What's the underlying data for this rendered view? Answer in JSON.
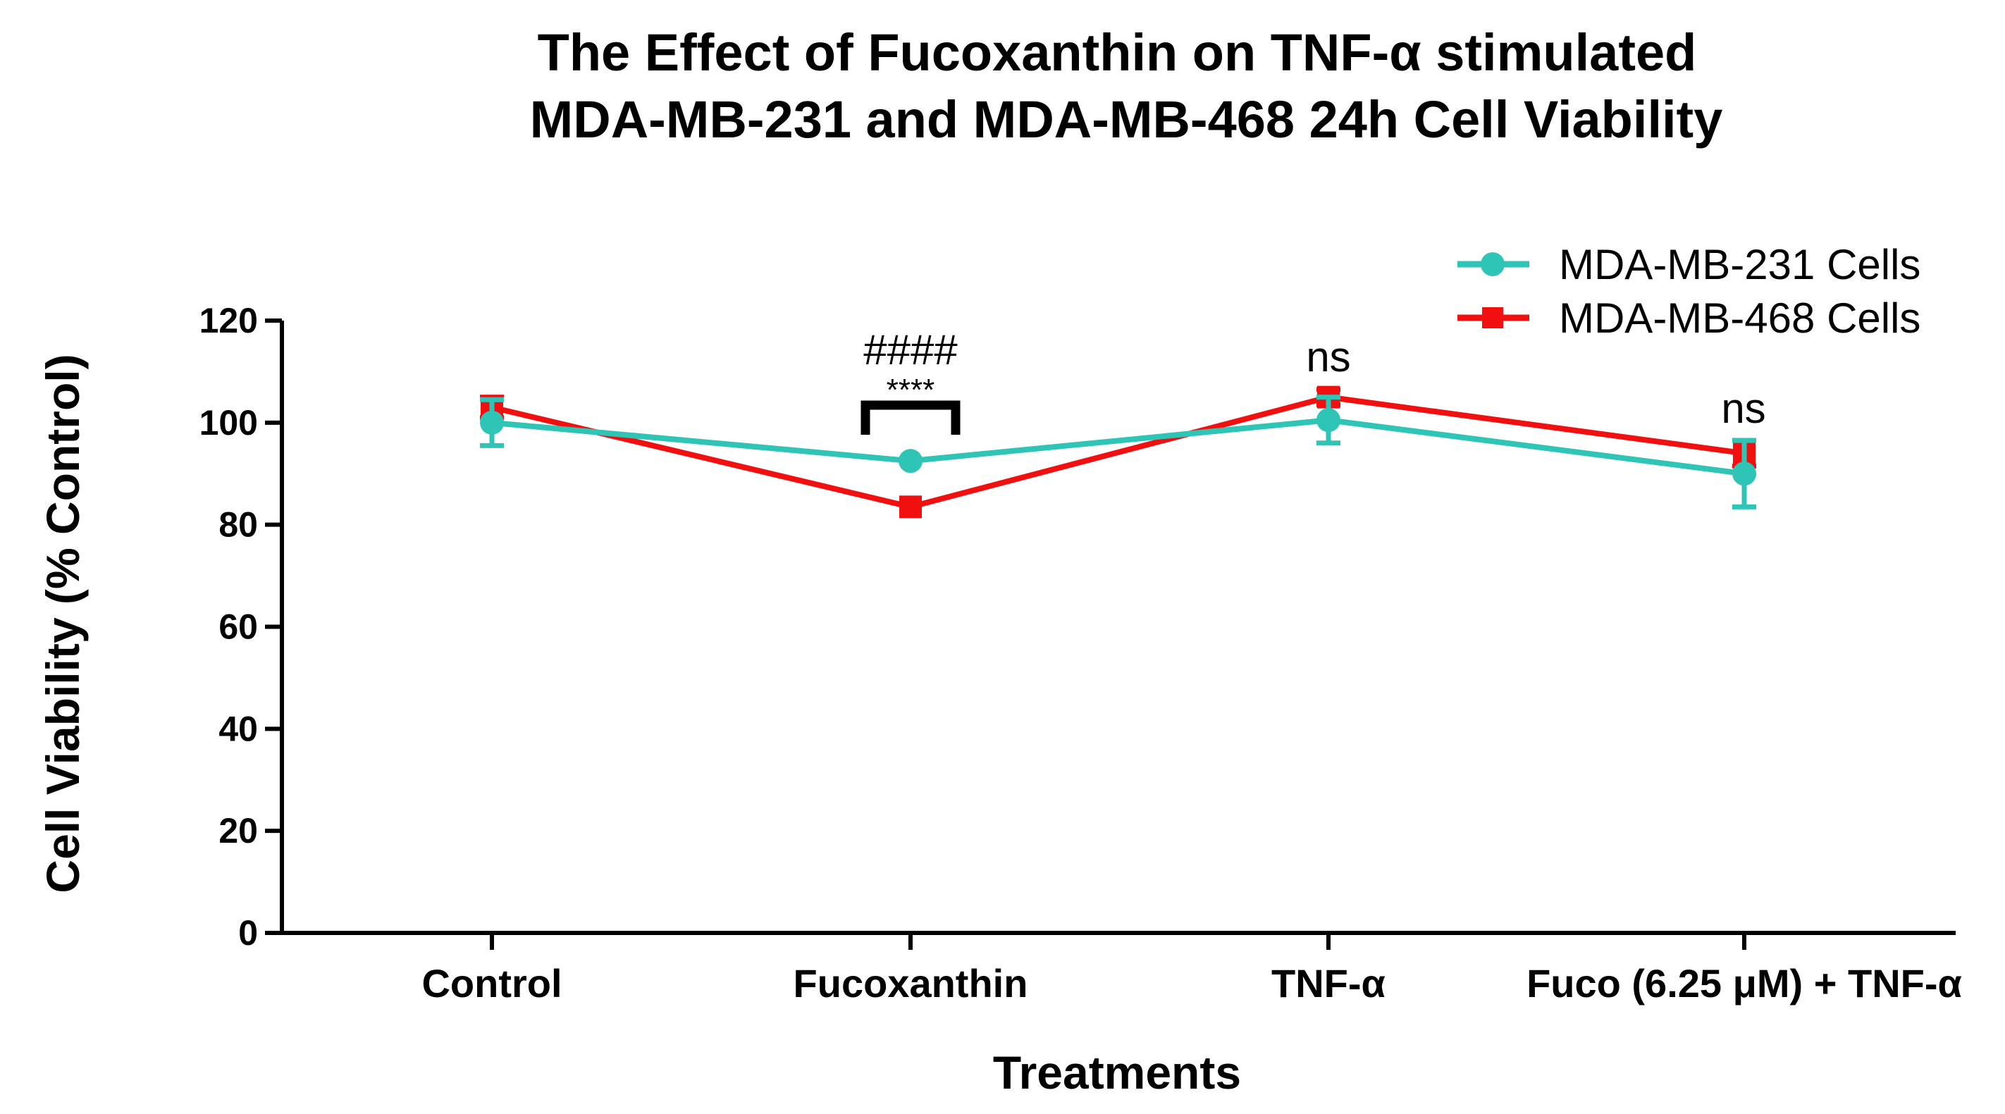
{
  "chart_data": {
    "type": "line",
    "title_lines": [
      "The Effect of Fucoxanthin on TNF-α stimulated",
      "MDA-MB-231 and MDA-MB-468 24h Cell Viability"
    ],
    "xlabel": "Treatments",
    "ylabel": "Cell Viability (% Control)",
    "ylim": [
      0,
      120
    ],
    "yticks": [
      "0",
      "20",
      "40",
      "60",
      "80",
      "100",
      "120"
    ],
    "categories": [
      "Control",
      "Fucoxanthin",
      "TNF-α",
      "Fuco (6.25 μM) + TNF-α"
    ],
    "series": [
      {
        "name": "MDA-MB-231 Cells",
        "color": "#2EC4B6",
        "marker": "circle",
        "values": [
          100,
          92.5,
          100.5,
          90
        ],
        "errors": [
          4.5,
          0,
          4.5,
          6.5
        ]
      },
      {
        "name": "MDA-MB-468 Cells",
        "color": "#F01010",
        "marker": "square",
        "values": [
          103,
          83.5,
          105,
          94
        ],
        "errors": [
          2,
          0,
          1.5,
          2.5
        ]
      }
    ],
    "annotations": {
      "hash": "####",
      "stars": "****",
      "tnf_ns": "ns",
      "combo_ns": "ns"
    }
  }
}
